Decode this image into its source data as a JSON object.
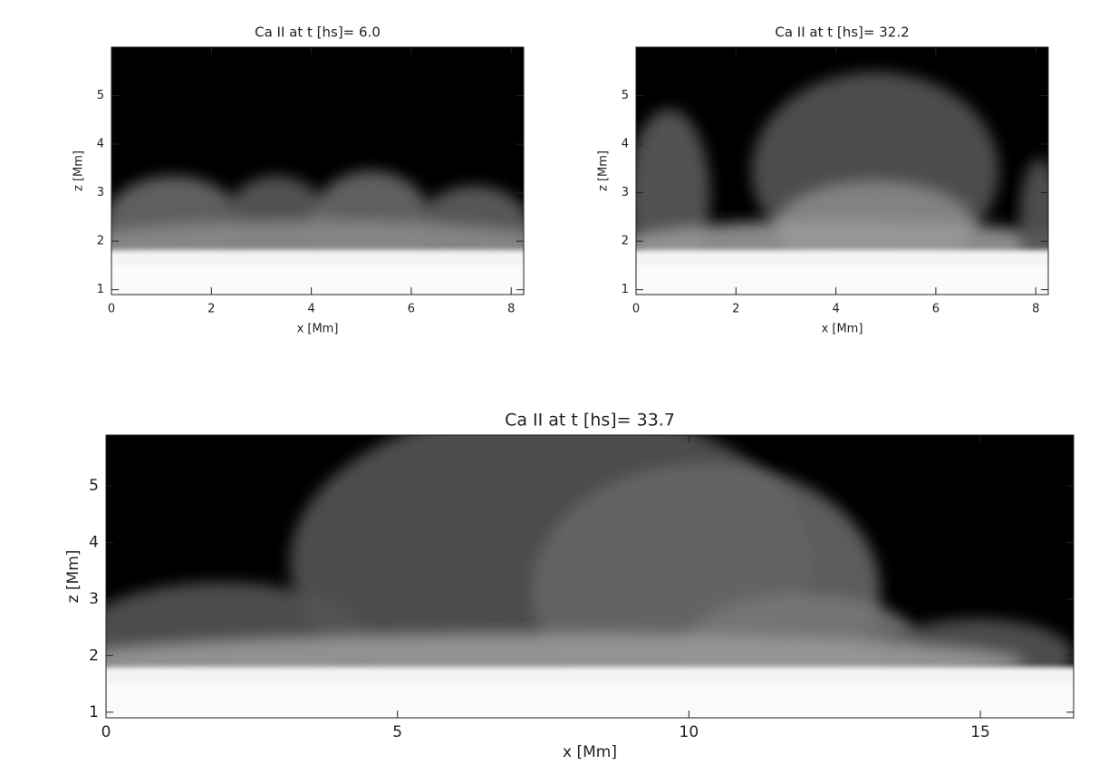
{
  "chart_data": [
    {
      "type": "image",
      "title": "Ca II at t [hs]= 6.0",
      "xlabel": "x [Mm]",
      "ylabel": "z [Mm]",
      "xlim": [
        0,
        8.25
      ],
      "ylim": [
        0.9,
        6.0
      ],
      "xticks": [
        0,
        2,
        4,
        6,
        8
      ],
      "yticks": [
        1,
        2,
        3,
        4,
        5
      ]
    },
    {
      "type": "image",
      "title": "Ca II at t [hs]= 32.2",
      "xlabel": "x [Mm]",
      "ylabel": "z [Mm]",
      "xlim": [
        0,
        8.25
      ],
      "ylim": [
        0.9,
        6.0
      ],
      "xticks": [
        0,
        2,
        4,
        6,
        8
      ],
      "yticks": [
        1,
        2,
        3,
        4,
        5
      ]
    },
    {
      "type": "image",
      "title": "Ca II at t [hs]= 33.7",
      "xlabel": "x [Mm]",
      "ylabel": "z [Mm]",
      "xlim": [
        0,
        16.6
      ],
      "ylim": [
        0.9,
        5.9
      ],
      "xticks": [
        0,
        5,
        10,
        15
      ],
      "yticks": [
        1,
        2,
        3,
        4,
        5
      ]
    }
  ]
}
